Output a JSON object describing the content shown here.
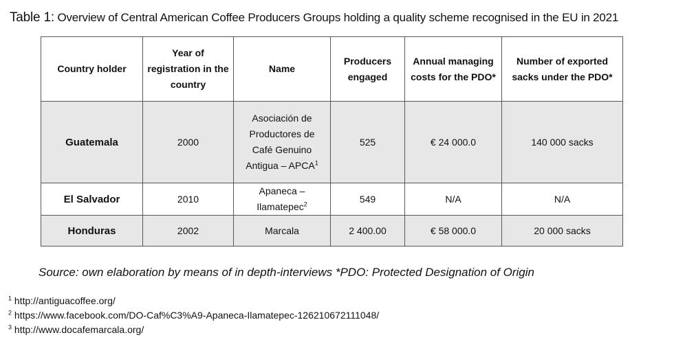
{
  "title": {
    "label": "Table 1:",
    "text": " Overview of Central American Coffee Producers Groups holding a quality scheme recognised in the EU in 2021"
  },
  "table": {
    "headers": [
      "Country holder",
      "Year of registration in the country",
      "Name",
      "Producers engaged",
      "Annual managing costs for the PDO*",
      "Number of exported sacks under the PDO*"
    ],
    "rows": [
      {
        "country": "Guatemala",
        "year": "2000",
        "name": "Asociación de Productores de Café Genuino Antigua – APCA",
        "name_sup": "1",
        "producers": "525",
        "costs": "€ 24 000.0",
        "sacks": "140 000 sacks"
      },
      {
        "country": "El Salvador",
        "year": "2010",
        "name": "Apaneca – Ilamatepec",
        "name_sup": "2",
        "producers": "549",
        "costs": "N/A",
        "sacks": "N/A"
      },
      {
        "country": "Honduras",
        "year": "2002",
        "name": "Marcala",
        "producers": "2 400.00",
        "costs": "€ 58 000.0",
        "sacks": "20 000 sacks"
      }
    ]
  },
  "source": "Source: own elaboration by means of in depth-interviews *PDO: Protected Designation of Origin",
  "footnotes": [
    {
      "num": "1",
      "text": "http://antiguacoffee.org/"
    },
    {
      "num": "2",
      "text": "https://www.facebook.com/DO-Caf%C3%A9-Apaneca-Ilamatepec-126210672111048/"
    },
    {
      "num": "3",
      "text": "http://www.docafemarcala.org/"
    }
  ]
}
